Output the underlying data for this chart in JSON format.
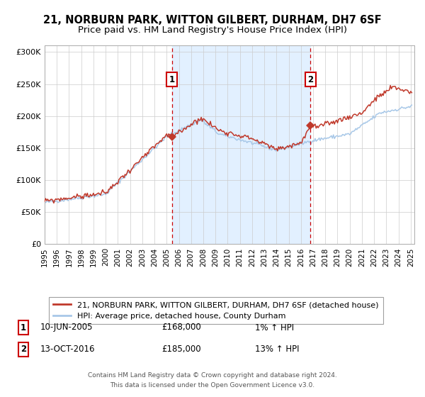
{
  "title1": "21, NORBURN PARK, WITTON GILBERT, DURHAM, DH7 6SF",
  "title2": "Price paid vs. HM Land Registry's House Price Index (HPI)",
  "ylim": [
    0,
    310000
  ],
  "xlim_start": 1995.0,
  "xlim_end": 2025.3,
  "yticks": [
    0,
    50000,
    100000,
    150000,
    200000,
    250000,
    300000
  ],
  "ytick_labels": [
    "£0",
    "£50K",
    "£100K",
    "£150K",
    "£200K",
    "£250K",
    "£300K"
  ],
  "xtick_years": [
    1995,
    1996,
    1997,
    1998,
    1999,
    2000,
    2001,
    2002,
    2003,
    2004,
    2005,
    2006,
    2007,
    2008,
    2009,
    2010,
    2011,
    2012,
    2013,
    2014,
    2015,
    2016,
    2017,
    2018,
    2019,
    2020,
    2021,
    2022,
    2023,
    2024,
    2025
  ],
  "hpi_color": "#a8c8e8",
  "price_color": "#c0392b",
  "bg_shade_color": "#ddeeff",
  "vline_color": "#cc0000",
  "marker1_x": 2005.44,
  "marker1_y": 168000,
  "marker2_x": 2016.78,
  "marker2_y": 185000,
  "shade_x1": 2005.44,
  "shade_x2": 2016.78,
  "legend_line1": "21, NORBURN PARK, WITTON GILBERT, DURHAM, DH7 6SF (detached house)",
  "legend_line2": "HPI: Average price, detached house, County Durham",
  "label1_num": "1",
  "label1_date": "10-JUN-2005",
  "label1_price": "£168,000",
  "label1_hpi": "1% ↑ HPI",
  "label2_num": "2",
  "label2_date": "13-OCT-2016",
  "label2_price": "£185,000",
  "label2_hpi": "13% ↑ HPI",
  "footer_line1": "Contains HM Land Registry data © Crown copyright and database right 2024.",
  "footer_line2": "This data is licensed under the Open Government Licence v3.0.",
  "title_fontsize": 10.5,
  "subtitle_fontsize": 9.5,
  "tick_fontsize": 8,
  "legend_fontsize": 8,
  "table_fontsize": 8.5,
  "footer_fontsize": 6.5
}
